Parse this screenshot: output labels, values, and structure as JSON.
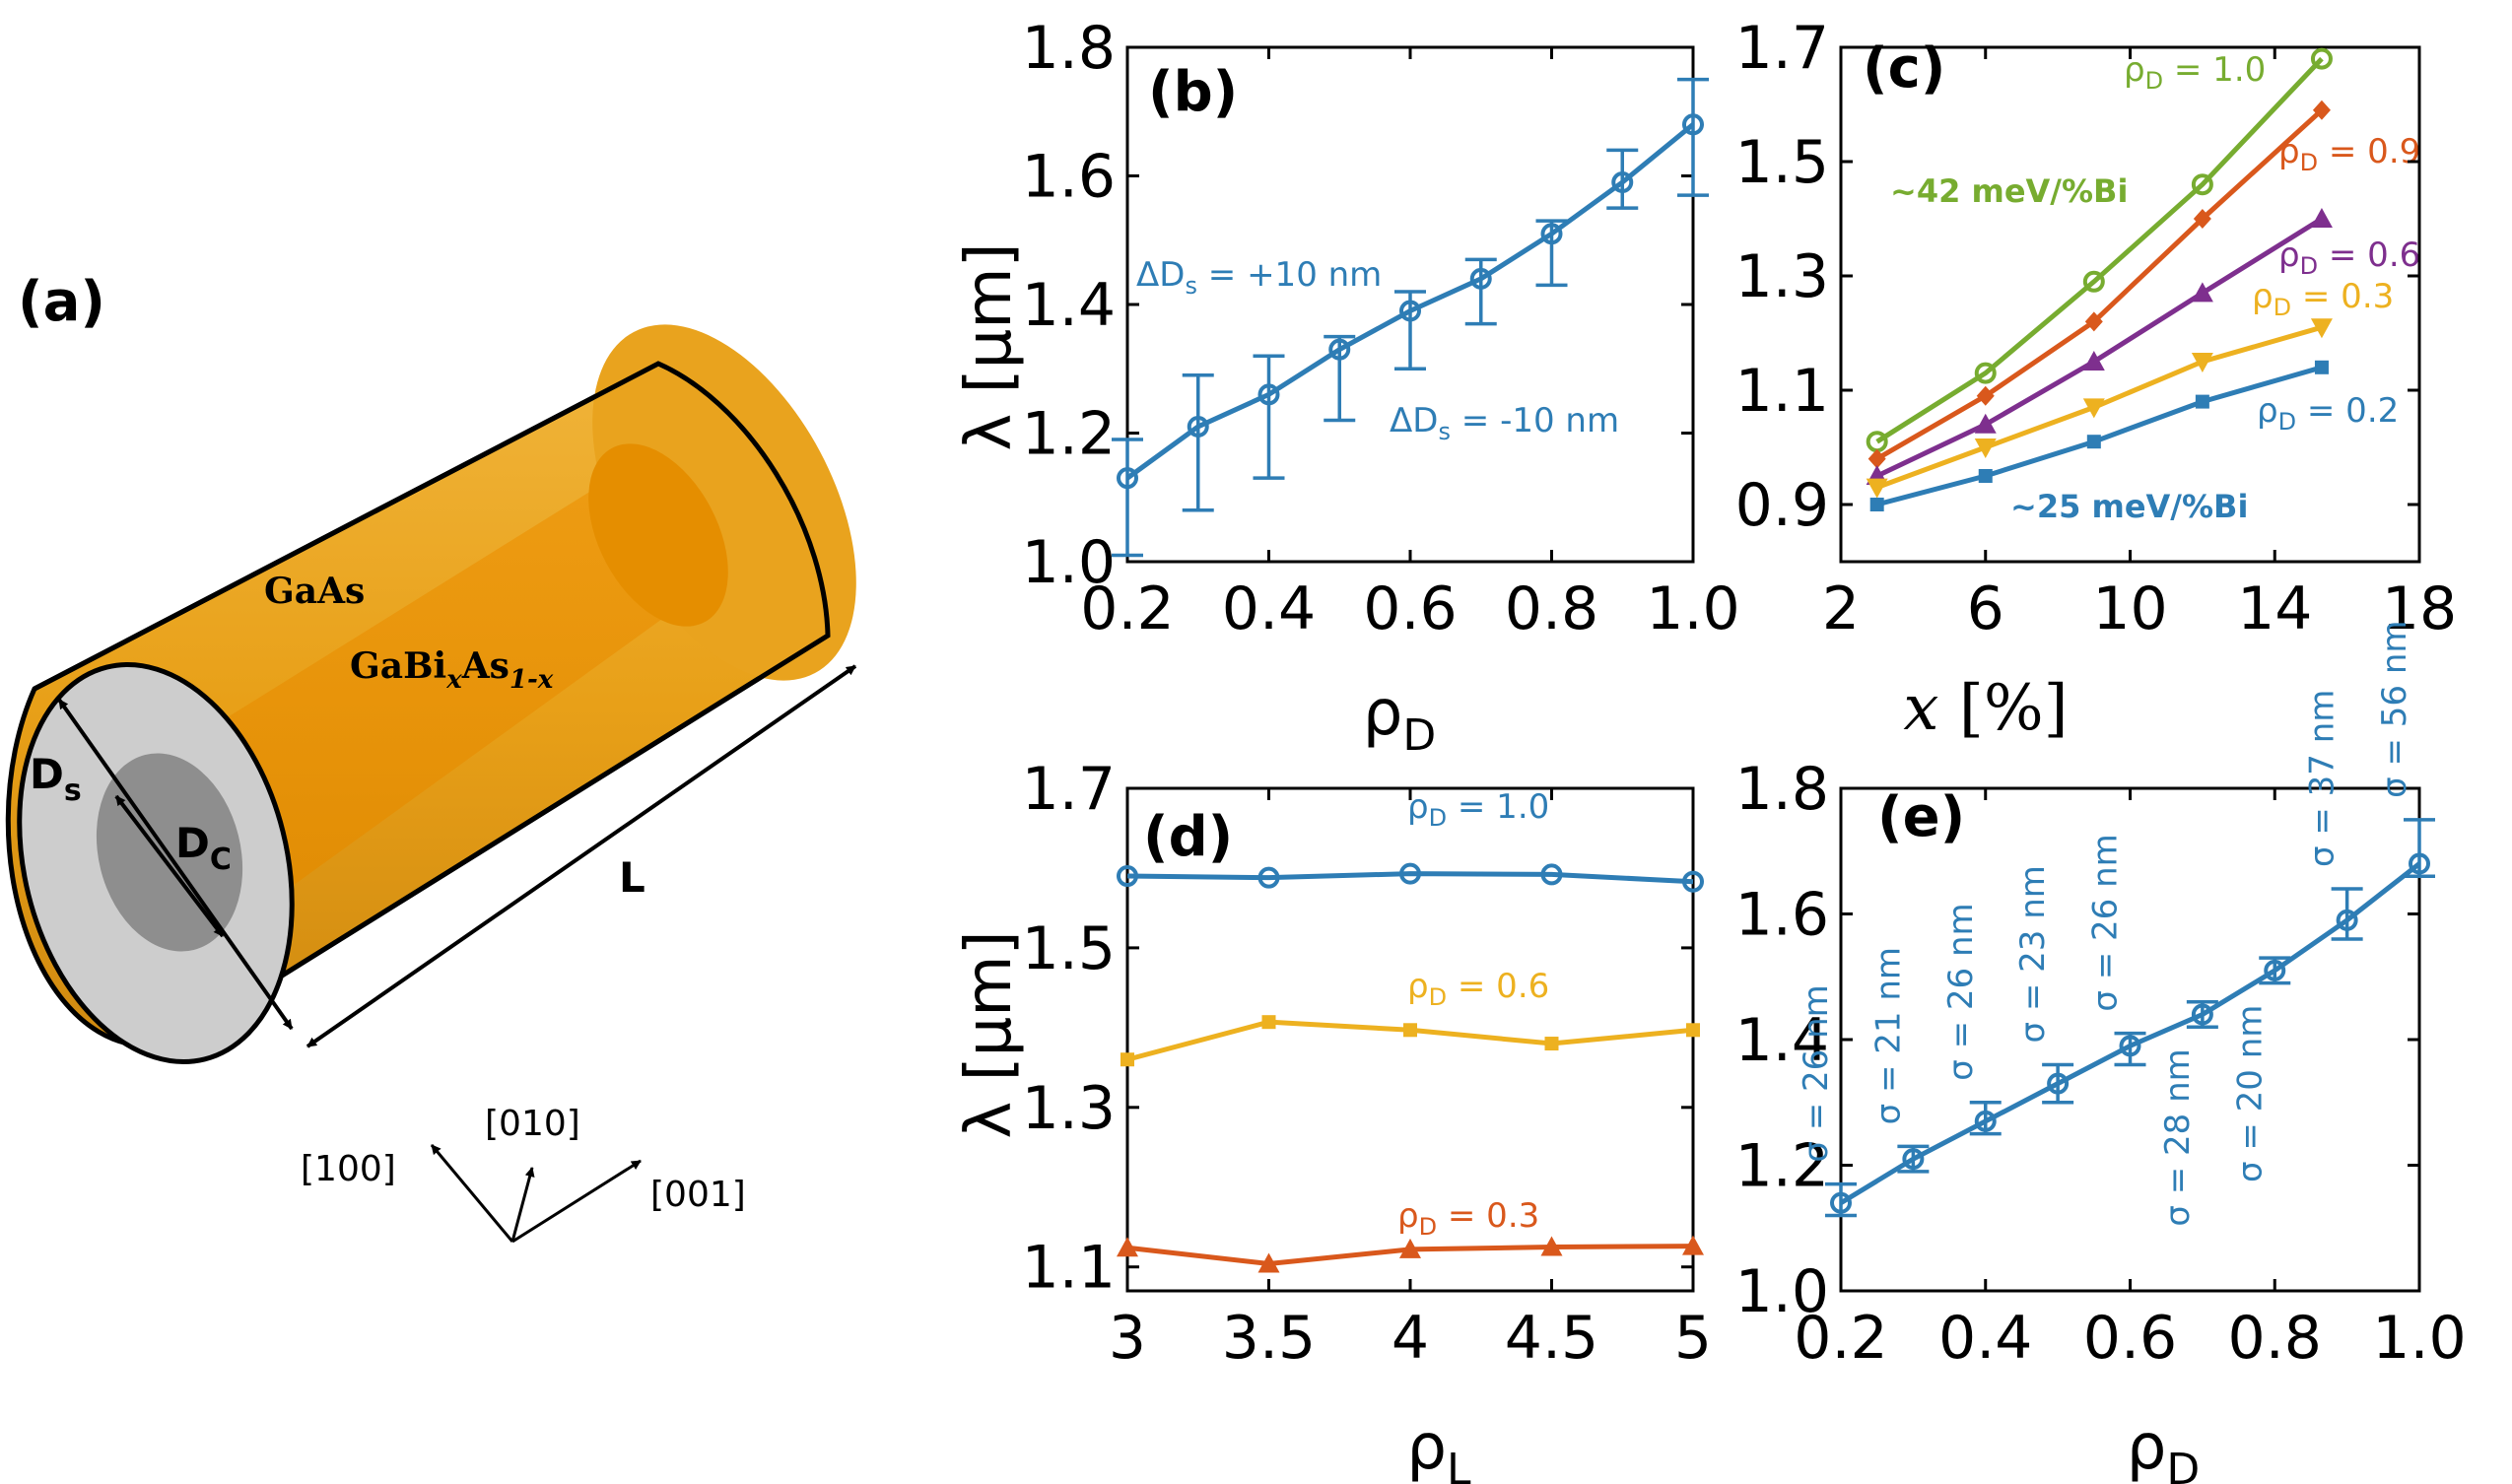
{
  "colors": {
    "blue": "#2E7DB5",
    "orange": "#D9581C",
    "yellow": "#EDB120",
    "purple": "#7E2F8E",
    "green": "#77AC30",
    "shell": "#E8A018",
    "shellDark": "#C98212",
    "core": "#EB9200",
    "endShell": "#CDCDCD",
    "endCore": "#8E8E8E"
  },
  "panel_a": {
    "label": "(a)",
    "shell_label": "GaAs",
    "core_label_base": "GaBi",
    "core_label_sub1": "x",
    "core_label_mid": "As",
    "core_label_sub2": "1-x",
    "ds_label_base": "D",
    "ds_label_sub": "s",
    "dc_label_base": "D",
    "dc_label_sub": "C",
    "length_label": "L",
    "axes": [
      "[100]",
      "[010]",
      "[001]"
    ]
  },
  "chart_data": [
    {
      "id": "b",
      "panel_label": "(b)",
      "type": "line",
      "xlabel_base": "ρ",
      "xlabel_sub": "D",
      "ylabel": "λ [μm]",
      "xlim": [
        0.2,
        1.0
      ],
      "ylim": [
        1.0,
        1.8
      ],
      "xticks": [
        0.2,
        0.4,
        0.6,
        0.8,
        1.0
      ],
      "xtick_labels": [
        "0.2",
        "0.4",
        "0.6",
        "0.8",
        "1.0"
      ],
      "yticks": [
        1.0,
        1.2,
        1.4,
        1.6,
        1.8
      ],
      "ytick_labels": [
        "1.0",
        "1.2",
        "1.4",
        "1.6",
        "1.8"
      ],
      "series": [
        {
          "name": "λ",
          "color": "#2E7DB5",
          "marker": "circle",
          "x": [
            0.2,
            0.3,
            0.4,
            0.5,
            0.6,
            0.7,
            0.8,
            0.9,
            1.0
          ],
          "y": [
            1.13,
            1.21,
            1.26,
            1.33,
            1.39,
            1.44,
            1.51,
            1.59,
            1.68
          ],
          "err_upper": [
            1.19,
            1.29,
            1.32,
            1.35,
            1.42,
            1.47,
            1.53,
            1.64,
            1.75
          ],
          "err_lower": [
            1.01,
            1.08,
            1.13,
            1.22,
            1.3,
            1.37,
            1.43,
            1.55,
            1.57
          ]
        }
      ],
      "annotations": [
        {
          "prefix": "ΔD",
          "sub": "s",
          "suffix": " = +10 nm"
        },
        {
          "prefix": "ΔD",
          "sub": "s",
          "suffix": " = -10 nm"
        }
      ]
    },
    {
      "id": "c",
      "panel_label": "(c)",
      "type": "line",
      "xlabel": "x",
      "xlabel_unit": " [%]",
      "xlim": [
        2,
        18
      ],
      "ylim": [
        0.8,
        1.7
      ],
      "xticks": [
        2,
        6,
        10,
        14,
        18
      ],
      "xtick_labels": [
        "2",
        "6",
        "10",
        "14",
        "18"
      ],
      "yticks": [
        0.9,
        1.1,
        1.3,
        1.5,
        1.7
      ],
      "ytick_labels": [
        "0.9",
        "1.1",
        "1.3",
        "1.5",
        "1.7"
      ],
      "x": [
        3,
        6,
        9,
        12,
        15.3
      ],
      "series": [
        {
          "name": "ρD = 1.0",
          "color": "#77AC30",
          "marker": "circle",
          "y": [
            1.01,
            1.13,
            1.29,
            1.46,
            1.68
          ],
          "label_base": "ρ",
          "label_sub": "D",
          "label_tail": " = 1.0"
        },
        {
          "name": "ρD = 0.9",
          "color": "#D9581C",
          "marker": "diamond",
          "y": [
            0.98,
            1.09,
            1.22,
            1.4,
            1.59
          ],
          "label_base": "ρ",
          "label_sub": "D",
          "label_tail": " = 0.9"
        },
        {
          "name": "ρD = 0.6",
          "color": "#7E2F8E",
          "marker": "triangle-up",
          "y": [
            0.95,
            1.04,
            1.15,
            1.27,
            1.4
          ],
          "label_base": "ρ",
          "label_sub": "D",
          "label_tail": " = 0.6"
        },
        {
          "name": "ρD = 0.3",
          "color": "#EDB120",
          "marker": "triangle-down",
          "y": [
            0.93,
            1.0,
            1.07,
            1.15,
            1.21
          ],
          "label_base": "ρ",
          "label_sub": "D",
          "label_tail": " = 0.3"
        },
        {
          "name": "ρD = 0.2",
          "color": "#2E7DB5",
          "marker": "square",
          "y": [
            0.9,
            0.95,
            1.01,
            1.08,
            1.14
          ],
          "label_base": "ρ",
          "label_sub": "D",
          "label_tail": " = 0.2"
        }
      ],
      "rate_annotations": [
        "~42 meV/%Bi",
        "~25 meV/%Bi"
      ]
    },
    {
      "id": "d",
      "panel_label": "(d)",
      "type": "line",
      "xlabel_base": "ρ",
      "xlabel_sub": "L",
      "ylabel": "λ [μm]",
      "xlim": [
        3,
        5
      ],
      "ylim": [
        1.07,
        1.7
      ],
      "xticks": [
        3,
        3.5,
        4,
        4.5,
        5
      ],
      "xtick_labels": [
        "3",
        "3.5",
        "4",
        "4.5",
        "5"
      ],
      "yticks": [
        1.1,
        1.3,
        1.5,
        1.7
      ],
      "ytick_labels": [
        "1.1",
        "1.3",
        "1.5",
        "1.7"
      ],
      "x": [
        3,
        3.5,
        4,
        4.5,
        5
      ],
      "series": [
        {
          "name": "ρD = 1.0",
          "color": "#2E7DB5",
          "marker": "circle",
          "y": [
            1.59,
            1.588,
            1.593,
            1.592,
            1.583
          ],
          "label_base": "ρ",
          "label_sub": "D",
          "label_tail": " = 1.0"
        },
        {
          "name": "ρD = 0.6",
          "color": "#EDB120",
          "marker": "square",
          "y": [
            1.36,
            1.407,
            1.397,
            1.38,
            1.397
          ],
          "label_base": "ρ",
          "label_sub": "D",
          "label_tail": " = 0.6"
        },
        {
          "name": "ρD = 0.3",
          "color": "#D9581C",
          "marker": "triangle-up",
          "y": [
            1.124,
            1.104,
            1.122,
            1.125,
            1.126
          ],
          "label_base": "ρ",
          "label_sub": "D",
          "label_tail": " = 0.3"
        }
      ]
    },
    {
      "id": "e",
      "panel_label": "(e)",
      "type": "line",
      "xlabel_base": "ρ",
      "xlabel_sub": "D",
      "xlim": [
        0.2,
        1.0
      ],
      "ylim": [
        1.0,
        1.8
      ],
      "xticks": [
        0.2,
        0.4,
        0.6,
        0.8,
        1.0
      ],
      "xtick_labels": [
        "0.2",
        "0.4",
        "0.6",
        "0.8",
        "1.0"
      ],
      "yticks": [
        1.0,
        1.2,
        1.4,
        1.6,
        1.8
      ],
      "ytick_labels": [
        "1.0",
        "1.2",
        "1.4",
        "1.6",
        "1.8"
      ],
      "series": [
        {
          "name": "λ",
          "color": "#2E7DB5",
          "marker": "circle",
          "x": [
            0.2,
            0.3,
            0.4,
            0.5,
            0.6,
            0.7,
            0.8,
            0.9,
            1.0
          ],
          "y": [
            1.14,
            1.21,
            1.27,
            1.33,
            1.39,
            1.44,
            1.51,
            1.59,
            1.68
          ],
          "err_upper": [
            1.17,
            1.23,
            1.3,
            1.36,
            1.41,
            1.46,
            1.53,
            1.64,
            1.75
          ],
          "err_lower": [
            1.12,
            1.19,
            1.25,
            1.3,
            1.36,
            1.42,
            1.49,
            1.56,
            1.66
          ]
        }
      ],
      "sigma_labels": [
        "σ = 26 nm",
        "σ = 21 nm",
        "σ = 26 nm",
        "σ = 23 nm",
        "σ = 26 nm",
        "σ = 28 nm",
        "σ = 20 nm",
        "σ = 37 nm",
        "σ = 56 nm"
      ]
    }
  ]
}
